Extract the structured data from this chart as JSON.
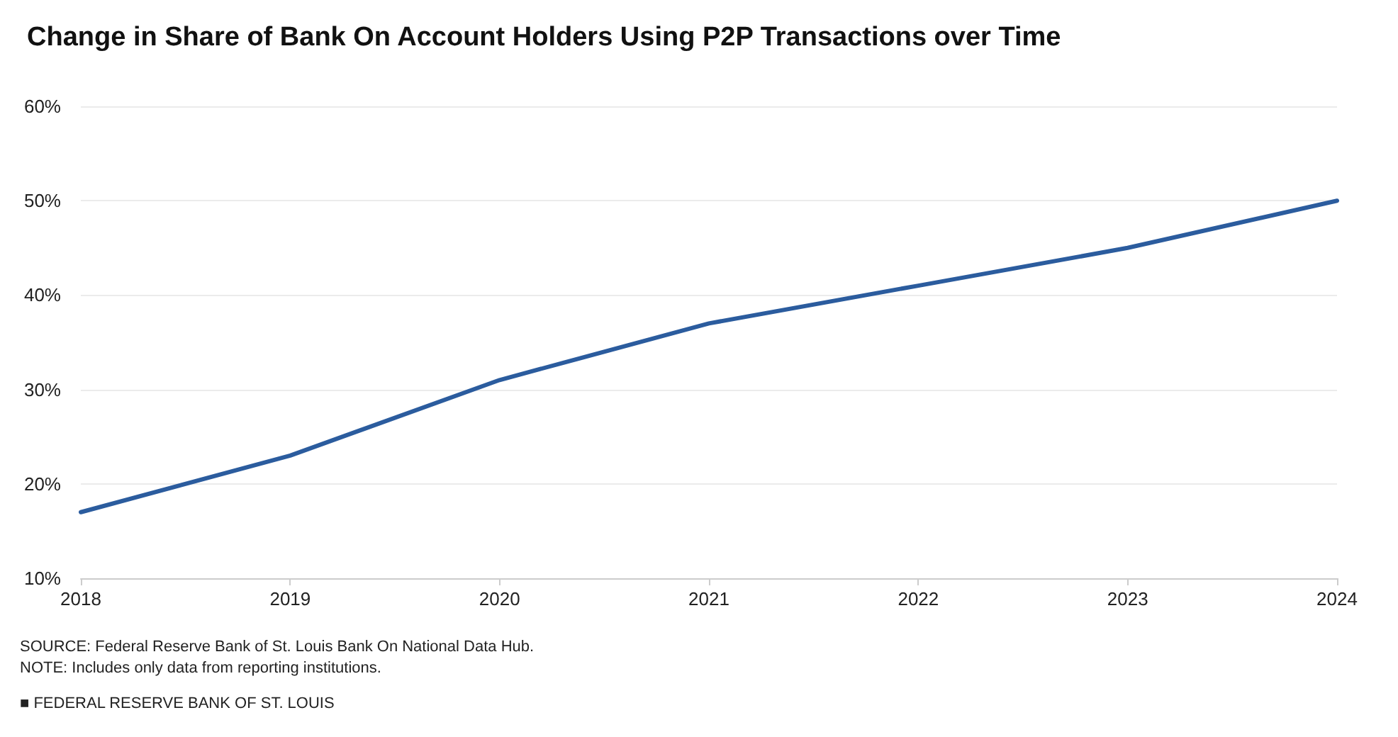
{
  "chart_data": {
    "type": "line",
    "title": "Change in Share of Bank On Account Holders Using P2P Transactions over Time",
    "categories": [
      "2018",
      "2019",
      "2020",
      "2021",
      "2022",
      "2023",
      "2024"
    ],
    "series": [
      {
        "color": "#2b5c9e",
        "values": [
          17,
          23,
          31,
          37,
          41,
          45,
          50
        ]
      }
    ],
    "ylim": [
      10,
      60
    ],
    "yticks": [
      {
        "value": 10,
        "label": "10%"
      },
      {
        "value": 20,
        "label": "20%"
      },
      {
        "value": 30,
        "label": "30%"
      },
      {
        "value": 40,
        "label": "40%"
      },
      {
        "value": 50,
        "label": "50%"
      },
      {
        "value": 60,
        "label": "60%"
      }
    ],
    "grid": "y",
    "marker": "none",
    "line_style": "solid",
    "annotations": [
      "SOURCE: Federal Reserve Bank of St. Louis Bank On National Data Hub.",
      "NOTE: Includes only data from reporting institutions.",
      "■ FEDERAL RESERVE BANK OF ST. LOUIS"
    ]
  }
}
